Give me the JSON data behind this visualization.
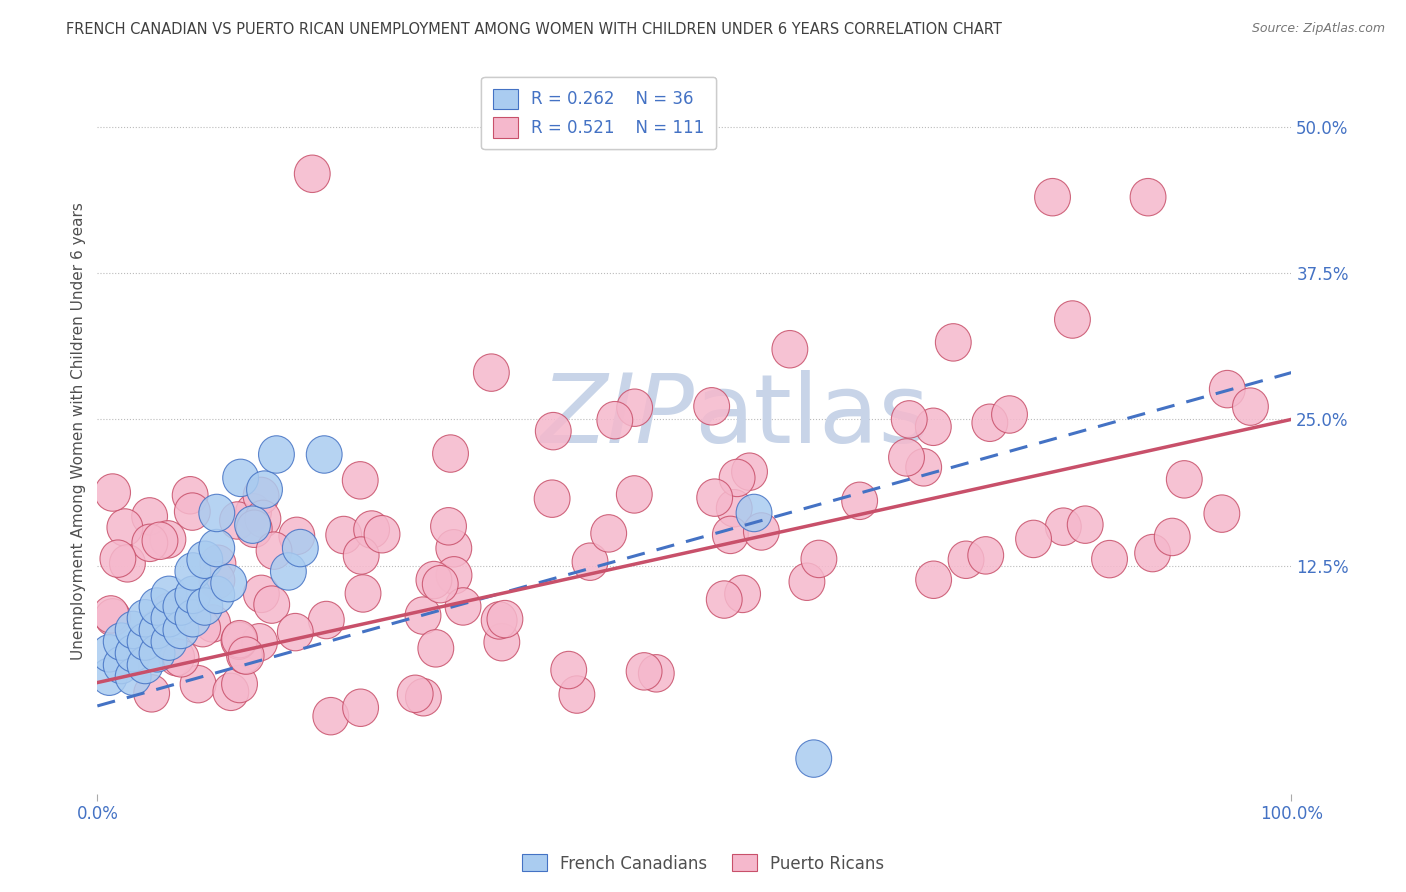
{
  "title": "FRENCH CANADIAN VS PUERTO RICAN UNEMPLOYMENT AMONG WOMEN WITH CHILDREN UNDER 6 YEARS CORRELATION CHART",
  "source": "Source: ZipAtlas.com",
  "ylabel": "Unemployment Among Women with Children Under 6 years",
  "ytick_values": [
    0.125,
    0.25,
    0.375,
    0.5
  ],
  "ytick_labels": [
    "12.5%",
    "25.0%",
    "37.5%",
    "50.0%"
  ],
  "xtick_values": [
    0.0,
    1.0
  ],
  "xtick_labels": [
    "0.0%",
    "100.0%"
  ],
  "xlim": [
    0.0,
    1.0
  ],
  "ylim": [
    -0.07,
    0.55
  ],
  "legend_fc_label": "French Canadians",
  "legend_pr_label": "Puerto Ricans",
  "legend_fc_R": "R = 0.262",
  "legend_fc_N": "N = 36",
  "legend_pr_R": "R = 0.521",
  "legend_pr_N": "N = 111",
  "fc_face_color": "#AACCF0",
  "fc_edge_color": "#4472C4",
  "fc_line_color": "#4472C4",
  "pr_face_color": "#F5B8CC",
  "pr_edge_color": "#C8506A",
  "pr_line_color": "#C8506A",
  "background_color": "#FFFFFF",
  "grid_color": "#BBBBBB",
  "title_color": "#404040",
  "axis_label_color": "#505050",
  "tick_color": "#4472C4",
  "watermark_text": "ZIPatlas",
  "watermark_color": "#C8D4E8",
  "fc_trend_intercept": 0.005,
  "fc_trend_slope": 0.285,
  "pr_trend_intercept": 0.025,
  "pr_trend_slope": 0.225
}
